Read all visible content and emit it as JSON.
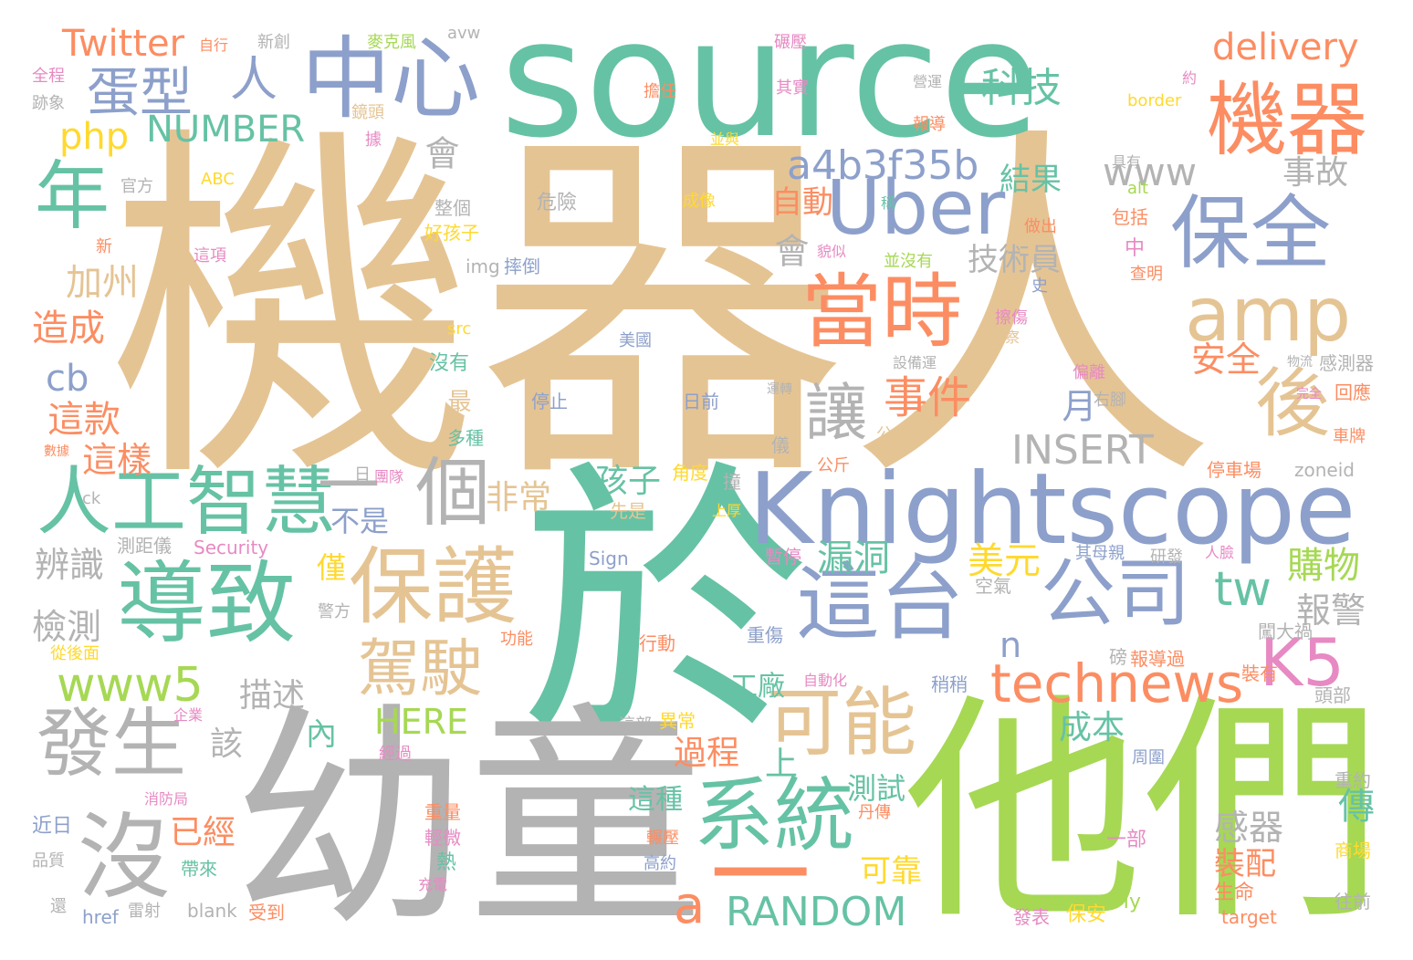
{
  "palette": {
    "tan": "#e5c494",
    "teal": "#66c2a5",
    "green": "#a6d854",
    "gray": "#b3b3b3",
    "blue": "#8da0cb",
    "orange": "#fc8d62",
    "pink": "#e78ac3",
    "yellow": "#ffd92f"
  },
  "words": [
    {
      "id": "w-jiqiren",
      "text": "機器人",
      "color": "tan"
    },
    {
      "id": "w-source",
      "text": "source",
      "color": "teal"
    },
    {
      "id": "w-yu",
      "text": "於",
      "color": "teal"
    },
    {
      "id": "w-youtong",
      "text": "幼童",
      "color": "gray"
    },
    {
      "id": "w-tamen",
      "text": "他們",
      "color": "green"
    },
    {
      "id": "w-knightscope",
      "text": "Knightscope",
      "color": "blue"
    },
    {
      "id": "w-zhongxin",
      "text": "中心",
      "color": "blue"
    },
    {
      "id": "w-jiqi",
      "text": "機器",
      "color": "orange"
    },
    {
      "id": "w-baoquan",
      "text": "保全",
      "color": "blue"
    },
    {
      "id": "w-dangshi",
      "text": "當時",
      "color": "orange"
    },
    {
      "id": "w-uber",
      "text": "Uber",
      "color": "blue"
    },
    {
      "id": "w-amp",
      "text": "amp",
      "color": "tan"
    },
    {
      "id": "w-daozhi",
      "text": "導致",
      "color": "teal"
    },
    {
      "id": "w-baohu",
      "text": "保護",
      "color": "tan"
    },
    {
      "id": "w-zhetai",
      "text": "這台",
      "color": "blue"
    },
    {
      "id": "w-gongsi",
      "text": "公司",
      "color": "blue"
    },
    {
      "id": "w-rengong",
      "text": "人工智慧",
      "color": "teal"
    },
    {
      "id": "w-ge",
      "text": "個",
      "color": "gray"
    },
    {
      "id": "w-fasheng",
      "text": "發生",
      "color": "gray"
    },
    {
      "id": "w-mei",
      "text": "沒",
      "color": "gray"
    },
    {
      "id": "w-xitong",
      "text": "系統",
      "color": "teal"
    },
    {
      "id": "w-keneng",
      "text": "可能",
      "color": "tan"
    },
    {
      "id": "w-jiashi",
      "text": "駕駛",
      "color": "tan"
    },
    {
      "id": "w-technews",
      "text": "technews",
      "color": "orange"
    },
    {
      "id": "w-k5",
      "text": "K5",
      "color": "pink"
    },
    {
      "id": "w-www5",
      "text": "www5",
      "color": "green"
    },
    {
      "id": "w-nian",
      "text": "年",
      "color": "teal"
    },
    {
      "id": "w-danxing",
      "text": "蛋型",
      "color": "blue"
    },
    {
      "id": "w-ren",
      "text": "人",
      "color": "blue"
    },
    {
      "id": "w-twitter",
      "text": "Twitter",
      "color": "orange"
    },
    {
      "id": "w-php",
      "text": "php",
      "color": "yellow"
    },
    {
      "id": "w-number",
      "text": "NUMBER",
      "color": "teal"
    },
    {
      "id": "w-keji",
      "text": "科技",
      "color": "teal"
    },
    {
      "id": "w-delivery",
      "text": "delivery",
      "color": "orange"
    },
    {
      "id": "w-a4b",
      "text": "a4b3f35b",
      "color": "blue"
    },
    {
      "id": "w-www",
      "text": "www",
      "color": "gray"
    },
    {
      "id": "w-shigu",
      "text": "事故",
      "color": "gray"
    },
    {
      "id": "w-hou",
      "text": "後",
      "color": "tan"
    },
    {
      "id": "w-rang",
      "text": "讓",
      "color": "gray"
    },
    {
      "id": "w-shijian",
      "text": "事件",
      "color": "orange"
    },
    {
      "id": "w-insert",
      "text": "INSERT",
      "color": "gray"
    },
    {
      "id": "w-random",
      "text": "RANDOM",
      "color": "teal"
    },
    {
      "id": "w-tw",
      "text": "tw",
      "color": "teal"
    },
    {
      "id": "w-yi",
      "text": "一",
      "color": "gray"
    },
    {
      "id": "w-yi2",
      "text": "一",
      "color": "orange"
    },
    {
      "id": "w-a",
      "text": "a",
      "color": "orange"
    },
    {
      "id": "w-n",
      "text": "n",
      "color": "blue"
    },
    {
      "id": "w-here",
      "text": "HERE",
      "color": "green"
    },
    {
      "id": "w-cb",
      "text": "cb",
      "color": "blue"
    },
    {
      "id": "w-jiazhou",
      "text": "加州",
      "color": "tan"
    },
    {
      "id": "w-zaocheng",
      "text": "造成",
      "color": "orange"
    },
    {
      "id": "w-zhekuan",
      "text": "這款",
      "color": "orange"
    },
    {
      "id": "w-zheyang",
      "text": "這樣",
      "color": "orange"
    },
    {
      "id": "w-bianshi",
      "text": "辨識",
      "color": "gray"
    },
    {
      "id": "w-jiance",
      "text": "檢測",
      "color": "gray"
    },
    {
      "id": "w-miaoshu",
      "text": "描述",
      "color": "gray"
    },
    {
      "id": "w-gai",
      "text": "該",
      "color": "gray"
    },
    {
      "id": "w-yijing",
      "text": "已經",
      "color": "orange"
    },
    {
      "id": "w-hui",
      "text": "會",
      "color": "gray"
    },
    {
      "id": "w-hui2",
      "text": "會",
      "color": "gray"
    },
    {
      "id": "w-zidong",
      "text": "自動",
      "color": "orange"
    },
    {
      "id": "w-jieguo",
      "text": "結果",
      "color": "teal"
    },
    {
      "id": "w-jishuyuan",
      "text": "技術員",
      "color": "gray"
    },
    {
      "id": "w-anquan",
      "text": "安全",
      "color": "orange"
    },
    {
      "id": "w-yue",
      "text": "月",
      "color": "blue"
    },
    {
      "id": "w-feichang",
      "text": "非常",
      "color": "tan"
    },
    {
      "id": "w-haizi",
      "text": "孩子",
      "color": "teal"
    },
    {
      "id": "w-bushi",
      "text": "不是",
      "color": "blue"
    },
    {
      "id": "w-jin",
      "text": "僅",
      "color": "yellow"
    },
    {
      "id": "w-loudong",
      "text": "漏洞",
      "color": "teal"
    },
    {
      "id": "w-meiyuan",
      "text": "美元",
      "color": "yellow"
    },
    {
      "id": "w-gouwu",
      "text": "購物",
      "color": "green"
    },
    {
      "id": "w-baojing",
      "text": "報警",
      "color": "gray"
    },
    {
      "id": "w-chengben",
      "text": "成本",
      "color": "teal"
    },
    {
      "id": "w-guocheng",
      "text": "過程",
      "color": "orange"
    },
    {
      "id": "w-shang",
      "text": "上",
      "color": "teal"
    },
    {
      "id": "w-nei",
      "text": "內",
      "color": "teal"
    },
    {
      "id": "w-gongchang",
      "text": "工廠",
      "color": "teal"
    },
    {
      "id": "w-ceshi",
      "text": "測試",
      "color": "teal"
    },
    {
      "id": "w-zhezhong",
      "text": "這種",
      "color": "teal"
    },
    {
      "id": "w-chuan",
      "text": "傳",
      "color": "teal"
    },
    {
      "id": "w-ganqi",
      "text": "感器",
      "color": "gray"
    },
    {
      "id": "w-zhuangpei",
      "text": "裝配",
      "color": "orange"
    },
    {
      "id": "w-kekao",
      "text": "可靠",
      "color": "yellow"
    },
    {
      "id": "w-zui",
      "text": "最",
      "color": "tan"
    },
    {
      "id": "w-guanfang",
      "text": "官方",
      "color": "gray"
    },
    {
      "id": "w-abc",
      "text": "ABC",
      "color": "yellow"
    },
    {
      "id": "w-weixian",
      "text": "危險",
      "color": "gray"
    },
    {
      "id": "w-chengxiang",
      "text": "成像",
      "color": "yellow"
    },
    {
      "id": "w-zhengge",
      "text": "整個",
      "color": "gray"
    },
    {
      "id": "w-haohaizi",
      "text": "好孩子",
      "color": "yellow"
    },
    {
      "id": "w-xin",
      "text": "新",
      "color": "orange"
    },
    {
      "id": "w-zhexiang",
      "text": "這項",
      "color": "pink"
    },
    {
      "id": "w-img",
      "text": "img",
      "color": "gray"
    },
    {
      "id": "w-shuaidao",
      "text": "摔倒",
      "color": "blue"
    },
    {
      "id": "w-src",
      "text": "src",
      "color": "yellow"
    },
    {
      "id": "w-meiyou",
      "text": "沒有",
      "color": "teal"
    },
    {
      "id": "w-duozhong",
      "text": "多種",
      "color": "teal"
    },
    {
      "id": "w-tingzhi",
      "text": "停止",
      "color": "blue"
    },
    {
      "id": "w-riqian",
      "text": "日前",
      "color": "blue"
    },
    {
      "id": "w-meiguo",
      "text": "美國",
      "color": "blue"
    },
    {
      "id": "w-ri",
      "text": "日",
      "color": "gray"
    },
    {
      "id": "w-tuandui",
      "text": "團隊",
      "color": "pink"
    },
    {
      "id": "w-jiaodu",
      "text": "角度",
      "color": "yellow"
    },
    {
      "id": "w-zhuang",
      "text": "撞",
      "color": "gray"
    },
    {
      "id": "w-ck",
      "text": "ck",
      "color": "gray"
    },
    {
      "id": "w-xianshi",
      "text": "先是",
      "color": "tan"
    },
    {
      "id": "w-shanghou",
      "text": "上厚",
      "color": "yellow"
    },
    {
      "id": "w-celiyi",
      "text": "測距儀",
      "color": "gray"
    },
    {
      "id": "w-security",
      "text": "Security",
      "color": "pink"
    },
    {
      "id": "w-sign",
      "text": "Sign",
      "color": "blue"
    },
    {
      "id": "w-zanting",
      "text": "暫停",
      "color": "pink"
    },
    {
      "id": "w-jingfang",
      "text": "警方",
      "color": "gray"
    },
    {
      "id": "w-kongqi",
      "text": "空氣",
      "color": "gray"
    },
    {
      "id": "w-zhongshang",
      "text": "重傷",
      "color": "blue"
    },
    {
      "id": "w-gongneng",
      "text": "功能",
      "color": "orange"
    },
    {
      "id": "w-xingdong",
      "text": "行動",
      "color": "orange"
    },
    {
      "id": "w-zidonghua",
      "text": "自動化",
      "color": "pink"
    },
    {
      "id": "w-conghoumian",
      "text": "從後面",
      "color": "yellow"
    },
    {
      "id": "w-qiye",
      "text": "企業",
      "color": "pink"
    },
    {
      "id": "w-yichang",
      "text": "異常",
      "color": "yellow"
    },
    {
      "id": "w-zhebu",
      "text": "這部",
      "color": "gray"
    },
    {
      "id": "w-jingguo",
      "text": "經過",
      "color": "pink"
    },
    {
      "id": "w-xiaofangju",
      "text": "消防局",
      "color": "pink"
    },
    {
      "id": "w-jinri",
      "text": "近日",
      "color": "blue"
    },
    {
      "id": "w-pinzhi",
      "text": "品質",
      "color": "gray"
    },
    {
      "id": "w-zhongliang",
      "text": "重量",
      "color": "orange"
    },
    {
      "id": "w-qingwei",
      "text": "輕微",
      "color": "pink"
    },
    {
      "id": "w-re",
      "text": "熱",
      "color": "teal"
    },
    {
      "id": "w-daolai",
      "text": "帶來",
      "color": "teal"
    },
    {
      "id": "w-chongdian",
      "text": "充電",
      "color": "pink"
    },
    {
      "id": "w-gaoyue",
      "text": "高約",
      "color": "blue"
    },
    {
      "id": "w-nianya",
      "text": "輾壓",
      "color": "orange"
    },
    {
      "id": "w-yibu",
      "text": "一部",
      "color": "pink"
    },
    {
      "id": "w-danchuan",
      "text": "丹傳",
      "color": "orange"
    },
    {
      "id": "w-hai",
      "text": "還",
      "color": "gray"
    },
    {
      "id": "w-href",
      "text": "href",
      "color": "blue"
    },
    {
      "id": "w-leishe",
      "text": "雷射",
      "color": "gray"
    },
    {
      "id": "w-blank",
      "text": "blank",
      "color": "gray"
    },
    {
      "id": "w-shoudao",
      "text": "受到",
      "color": "orange"
    },
    {
      "id": "w-fabiao",
      "text": "發表",
      "color": "pink"
    },
    {
      "id": "w-baoan",
      "text": "保安",
      "color": "yellow"
    },
    {
      "id": "w-my",
      "text": "My",
      "color": "green"
    },
    {
      "id": "w-target",
      "text": "target",
      "color": "orange"
    },
    {
      "id": "w-wangqian",
      "text": "往前",
      "color": "gray"
    },
    {
      "id": "w-shengming",
      "text": "生命",
      "color": "orange"
    },
    {
      "id": "w-shangchang",
      "text": "商場",
      "color": "yellow"
    },
    {
      "id": "w-zhongyue",
      "text": "重約",
      "color": "gray"
    },
    {
      "id": "w-toubu",
      "text": "頭部",
      "color": "gray"
    },
    {
      "id": "w-zhouwei",
      "text": "周圍",
      "color": "blue"
    },
    {
      "id": "w-baodaoguo",
      "text": "報導過",
      "color": "orange"
    },
    {
      "id": "w-zhuangyou",
      "text": "裝有",
      "color": "orange"
    },
    {
      "id": "w-bang",
      "text": "磅",
      "color": "gray"
    },
    {
      "id": "w-shaoshao",
      "text": "稍稍",
      "color": "blue"
    },
    {
      "id": "w-chuangdahuo",
      "text": "闖大禍",
      "color": "gray"
    },
    {
      "id": "w-renlian",
      "text": "人臉",
      "color": "pink"
    },
    {
      "id": "w-yanfa",
      "text": "研發",
      "color": "gray"
    },
    {
      "id": "w-qimuqin",
      "text": "其母親",
      "color": "blue"
    },
    {
      "id": "w-tingchechang",
      "text": "停車場",
      "color": "orange"
    },
    {
      "id": "w-zoneid",
      "text": "zoneid",
      "color": "gray"
    },
    {
      "id": "w-chepai",
      "text": "車牌",
      "color": "orange"
    },
    {
      "id": "w-huiying",
      "text": "回應",
      "color": "orange"
    },
    {
      "id": "w-wanquan",
      "text": "完全",
      "color": "pink"
    },
    {
      "id": "w-youjiao",
      "text": "右腳",
      "color": "gray"
    },
    {
      "id": "w-pianli",
      "text": "偏離",
      "color": "pink"
    },
    {
      "id": "w-wuliu",
      "text": "物流",
      "color": "gray"
    },
    {
      "id": "w-ganceqi",
      "text": "感測器",
      "color": "gray"
    },
    {
      "id": "w-gongchi",
      "text": "公尺",
      "color": "tan"
    },
    {
      "id": "w-gongjin",
      "text": "公斤",
      "color": "orange"
    },
    {
      "id": "w-yi3",
      "text": "儀",
      "color": "gray"
    },
    {
      "id": "w-yunzhuan",
      "text": "運轉",
      "color": "gray"
    },
    {
      "id": "w-shuju",
      "text": "數據",
      "color": "orange"
    },
    {
      "id": "w-shebeiyun",
      "text": "設備運",
      "color": "gray"
    },
    {
      "id": "w-zhencha",
      "text": "偵察",
      "color": "tan"
    },
    {
      "id": "w-cashang",
      "text": "擦傷",
      "color": "pink"
    },
    {
      "id": "w-shi",
      "text": "史",
      "color": "blue"
    },
    {
      "id": "w-chaming",
      "text": "查明",
      "color": "orange"
    },
    {
      "id": "w-baokuo",
      "text": "包括",
      "color": "orange"
    },
    {
      "id": "w-zhong",
      "text": "中",
      "color": "pink"
    },
    {
      "id": "w-alt",
      "text": "alt",
      "color": "green"
    },
    {
      "id": "w-juyou",
      "text": "具有",
      "color": "gray"
    },
    {
      "id": "w-bingmeiyou",
      "text": "並沒有",
      "color": "green"
    },
    {
      "id": "w-leisi",
      "text": "貌似",
      "color": "pink"
    },
    {
      "id": "w-zuochu",
      "text": "做出",
      "color": "orange"
    },
    {
      "id": "w-cheng",
      "text": "稱",
      "color": "teal"
    },
    {
      "id": "w-bingyu",
      "text": "並與",
      "color": "yellow"
    },
    {
      "id": "w-ju",
      "text": "據",
      "color": "pink"
    },
    {
      "id": "w-baodao",
      "text": "報導",
      "color": "orange"
    },
    {
      "id": "w-yingyun",
      "text": "營運",
      "color": "gray"
    },
    {
      "id": "w-yue2",
      "text": "約",
      "color": "pink"
    },
    {
      "id": "w-border",
      "text": "border",
      "color": "yellow"
    },
    {
      "id": "w-qishi",
      "text": "其實",
      "color": "pink"
    },
    {
      "id": "w-danren",
      "text": "擔任",
      "color": "orange"
    },
    {
      "id": "w-jingtou",
      "text": "鏡頭",
      "color": "tan"
    },
    {
      "id": "w-niya",
      "text": "碾壓",
      "color": "pink"
    },
    {
      "id": "w-maikefeng",
      "text": "麥克風",
      "color": "green"
    },
    {
      "id": "w-avw",
      "text": "avw",
      "color": "gray"
    },
    {
      "id": "w-zixing",
      "text": "自行",
      "color": "orange"
    },
    {
      "id": "w-xinchuang",
      "text": "新創",
      "color": "gray"
    },
    {
      "id": "w-quancheng",
      "text": "全程",
      "color": "pink"
    },
    {
      "id": "w-jixiang",
      "text": "跡象",
      "color": "gray"
    }
  ]
}
